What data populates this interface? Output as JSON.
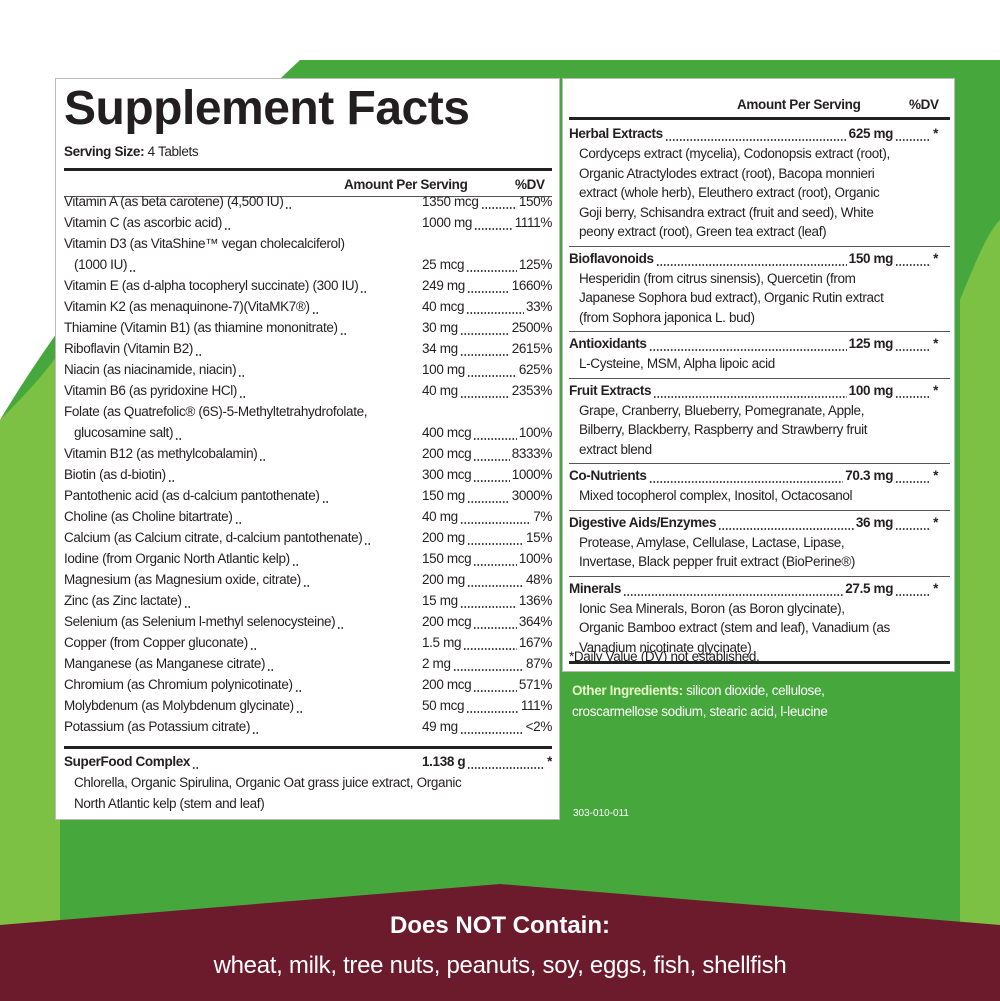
{
  "left": {
    "title": "Supplement Facts",
    "serving_label": "Serving Size:",
    "serving_value": "4 Tablets",
    "header_amount": "Amount Per Serving",
    "header_dv": "%DV",
    "rows": [
      {
        "name": "Vitamin A (as beta carotene) (4,500 IU)",
        "amount": "1350 mcg",
        "dv": "150%"
      },
      {
        "name": "Vitamin C (as ascorbic acid)",
        "amount": "1000 mg",
        "dv": "1111%"
      },
      {
        "name": "Vitamin D3 (as VitaShine™ vegan cholecalciferol)",
        "name2": "(1000 IU)",
        "amount": "25 mcg",
        "dv": "125%"
      },
      {
        "name": "Vitamin E (as d-alpha tocopheryl succinate) (300 IU)",
        "amount": "249 mg",
        "dv": "1660%"
      },
      {
        "name": "Vitamin K2 (as menaquinone-7)(VitaMK7®)",
        "amount": "40 mcg",
        "dv": "33%"
      },
      {
        "name": "Thiamine (Vitamin B1) (as thiamine mononitrate)",
        "amount": "30 mg",
        "dv": "2500%"
      },
      {
        "name": "Riboflavin (Vitamin B2)",
        "amount": "34 mg",
        "dv": "2615%"
      },
      {
        "name": "Niacin (as niacinamide, niacin)",
        "amount": "100 mg",
        "dv": "625%"
      },
      {
        "name": "Vitamin B6 (as pyridoxine HCl)",
        "amount": "40 mg",
        "dv": "2353%"
      },
      {
        "name": "Folate (as Quatrefolic® (6S)-5-Methyltetrahydrofolate,",
        "name2": "glucosamine salt)",
        "amount": "400 mcg",
        "dv": "100%"
      },
      {
        "name": "Vitamin B12 (as methylcobalamin)",
        "amount": "200 mcg",
        "dv": "8333%"
      },
      {
        "name": "Biotin (as d-biotin)",
        "amount": "300 mcg",
        "dv": "1000%"
      },
      {
        "name": "Pantothenic acid (as d-calcium pantothenate)",
        "amount": "150 mg",
        "dv": "3000%"
      },
      {
        "name": "Choline (as Choline bitartrate)",
        "amount": "40 mg",
        "dv": "7%"
      },
      {
        "name": "Calcium (as Calcium citrate, d-calcium pantothenate)",
        "amount": "200 mg",
        "dv": "15%"
      },
      {
        "name": "Iodine (from Organic North Atlantic kelp)",
        "amount": "150 mcg",
        "dv": "100%"
      },
      {
        "name": "Magnesium (as Magnesium oxide, citrate)",
        "amount": "200 mg",
        "dv": "48%"
      },
      {
        "name": "Zinc (as Zinc lactate)",
        "amount": "15 mg",
        "dv": "136%"
      },
      {
        "name": "Selenium (as Selenium l-methyl selenocysteine)",
        "amount": "200 mcg",
        "dv": "364%"
      },
      {
        "name": "Copper (from Copper gluconate)",
        "amount": "1.5 mg",
        "dv": "167%"
      },
      {
        "name": "Manganese (as Manganese citrate)",
        "amount": "2 mg",
        "dv": "87%"
      },
      {
        "name": "Chromium (as Chromium polynicotinate)",
        "amount": "200 mcg",
        "dv": "571%"
      },
      {
        "name": "Molybdenum (as Molybdenum glycinate)",
        "amount": "50 mcg",
        "dv": "111%"
      },
      {
        "name": "Potassium (as Potassium citrate)",
        "amount": "49 mg",
        "dv": "<2%"
      }
    ],
    "superfood": {
      "name": "SuperFood Complex",
      "amount": "1.138 g",
      "dv": "*",
      "desc": [
        "Chlorella, Organic Spirulina, Organic Oat grass juice extract, Organic",
        "North Atlantic kelp (stem and leaf)"
      ]
    }
  },
  "right": {
    "header_amount": "Amount Per Serving",
    "header_dv": "%DV",
    "sections": [
      {
        "name": "Herbal Extracts",
        "amount": "625 mg",
        "dv": "*",
        "desc": [
          "Cordyceps extract (mycelia), Codonopsis extract (root),",
          "Organic Atractylodes extract (root), Bacopa monnieri",
          "extract (whole herb), Eleuthero extract (root), Organic",
          "Goji berry, Schisandra extract (fruit and seed), White",
          "peony extract (root), Green tea extract (leaf)"
        ]
      },
      {
        "name": "Bioflavonoids",
        "amount": "150 mg",
        "dv": "*",
        "desc": [
          "Hesperidin (from citrus sinensis), Quercetin (from",
          "Japanese Sophora bud extract), Organic Rutin extract",
          "(from Sophora japonica L. bud)"
        ]
      },
      {
        "name": "Antioxidants",
        "amount": "125 mg",
        "dv": "*",
        "desc": [
          "L-Cysteine, MSM, Alpha lipoic acid"
        ]
      },
      {
        "name": "Fruit Extracts",
        "amount": "100 mg",
        "dv": "*",
        "desc": [
          "Grape, Cranberry, Blueberry, Pomegranate, Apple,",
          "Bilberry, Blackberry, Raspberry and Strawberry fruit",
          "extract blend"
        ]
      },
      {
        "name": "Co-Nutrients",
        "amount": "70.3 mg",
        "dv": "*",
        "desc": [
          "Mixed tocopherol complex, Inositol, Octacosanol"
        ]
      },
      {
        "name": "Digestive Aids/Enzymes",
        "amount": "36 mg",
        "dv": "*",
        "desc": [
          "Protease, Amylase, Cellulase, Lactase, Lipase,",
          "Invertase, Black pepper fruit extract (BioPerine®)"
        ]
      },
      {
        "name": "Minerals",
        "amount": "27.5 mg",
        "dv": "*",
        "desc": [
          "Ionic Sea Minerals, Boron (as Boron glycinate),",
          "Organic Bamboo extract (stem and leaf), Vanadium (as",
          "Vanadium nicotinate glycinate)"
        ]
      }
    ],
    "footnote": "*Daily Value (DV) not established."
  },
  "other": {
    "label": "Other Ingredients:",
    "text": "silicon dioxide, cellulose,",
    "text2": "croscarmellose sodium, stearic acid, l-leucine"
  },
  "code": "303-010-011",
  "banner": {
    "title": "Does NOT Contain:",
    "text": "wheat, milk, tree nuts, peanuts, soy, eggs, fish, shellfish"
  }
}
